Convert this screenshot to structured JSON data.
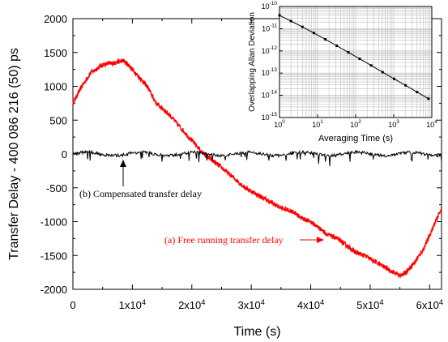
{
  "chart_data": [
    {
      "type": "line",
      "xlabel": "Time (s)",
      "ylabel": "Transfer Delay - 400 086 216 (50) ps",
      "xlim": [
        0,
        62000
      ],
      "ylim": [
        -2000,
        2000
      ],
      "x_ticks": [
        {
          "value": 0,
          "base": "0",
          "exp": ""
        },
        {
          "value": 10000,
          "base": "1x10",
          "exp": "4"
        },
        {
          "value": 20000,
          "base": "2x10",
          "exp": "4"
        },
        {
          "value": 30000,
          "base": "3x10",
          "exp": "4"
        },
        {
          "value": 40000,
          "base": "4x10",
          "exp": "4"
        },
        {
          "value": 50000,
          "base": "5x10",
          "exp": "4"
        },
        {
          "value": 60000,
          "base": "6x10",
          "exp": "4"
        }
      ],
      "y_ticks": [
        -2000,
        -1500,
        -1000,
        -500,
        0,
        500,
        1000,
        1500,
        2000
      ],
      "series": [
        {
          "label": "(a) Free running transfer delay",
          "color": "#ff0000",
          "x": [
            0,
            1500,
            3000,
            5000,
            7000,
            8500,
            9500,
            11000,
            12500,
            14000,
            16000,
            18000,
            20000,
            22000,
            23500,
            25000,
            27000,
            29000,
            31000,
            33000,
            35000,
            37000,
            38500,
            40000,
            41500,
            43000,
            44500,
            46000,
            47500,
            49000,
            51000,
            53000,
            55000,
            56000,
            57500,
            59000,
            60500,
            62000
          ],
          "y": [
            750,
            1000,
            1200,
            1320,
            1350,
            1380,
            1300,
            1150,
            1000,
            750,
            600,
            400,
            200,
            0,
            -100,
            -200,
            -350,
            -500,
            -600,
            -700,
            -800,
            -850,
            -950,
            -1000,
            -1100,
            -1200,
            -1250,
            -1350,
            -1450,
            -1500,
            -1600,
            -1700,
            -1800,
            -1750,
            -1600,
            -1400,
            -1100,
            -800
          ]
        },
        {
          "label": "(b) Compensated transfer delay",
          "color": "#000000",
          "x": [
            0,
            62000
          ],
          "y": [
            0,
            0
          ]
        }
      ],
      "annotations": [
        {
          "text": "(b) Compensated transfer delay",
          "color": "#000000"
        },
        {
          "text": "(a) Free running transfer delay",
          "color": "#ff0000"
        }
      ]
    },
    {
      "type": "line",
      "xlabel": "Averaging Time (s)",
      "ylabel": "Overlapping Allan Deviation",
      "x_scale": "log",
      "y_scale": "log",
      "xlim": [
        1,
        10000
      ],
      "ylim": [
        1e-15,
        1e-10
      ],
      "grid": true,
      "x_ticks": [
        {
          "value": 1,
          "base": "10",
          "exp": "0"
        },
        {
          "value": 10,
          "base": "10",
          "exp": "1"
        },
        {
          "value": 100,
          "base": "10",
          "exp": "2"
        },
        {
          "value": 1000,
          "base": "10",
          "exp": "3"
        },
        {
          "value": 10000,
          "base": "10",
          "exp": "4"
        }
      ],
      "y_ticks": [
        {
          "value": 1e-15,
          "base": "10",
          "exp": "-15"
        },
        {
          "value": 1e-14,
          "base": "10",
          "exp": "-14"
        },
        {
          "value": 1e-13,
          "base": "10",
          "exp": "-13"
        },
        {
          "value": 1e-12,
          "base": "10",
          "exp": "-12"
        },
        {
          "value": 1e-11,
          "base": "10",
          "exp": "-11"
        },
        {
          "value": 1e-10,
          "base": "10",
          "exp": "-10"
        }
      ],
      "series": [
        {
          "color": "#000000",
          "x": [
            1,
            2,
            4,
            8,
            16,
            32,
            64,
            128,
            256,
            512,
            1024,
            2048,
            4096,
            8192
          ],
          "y": [
            4e-11,
            2.2e-11,
            1.2e-11,
            6.4e-12,
            3.3e-12,
            1.7e-12,
            8.6e-13,
            4.4e-13,
            2.2e-13,
            1.1e-13,
            5.5e-14,
            2.8e-14,
            1.4e-14,
            7e-15
          ]
        }
      ]
    }
  ]
}
